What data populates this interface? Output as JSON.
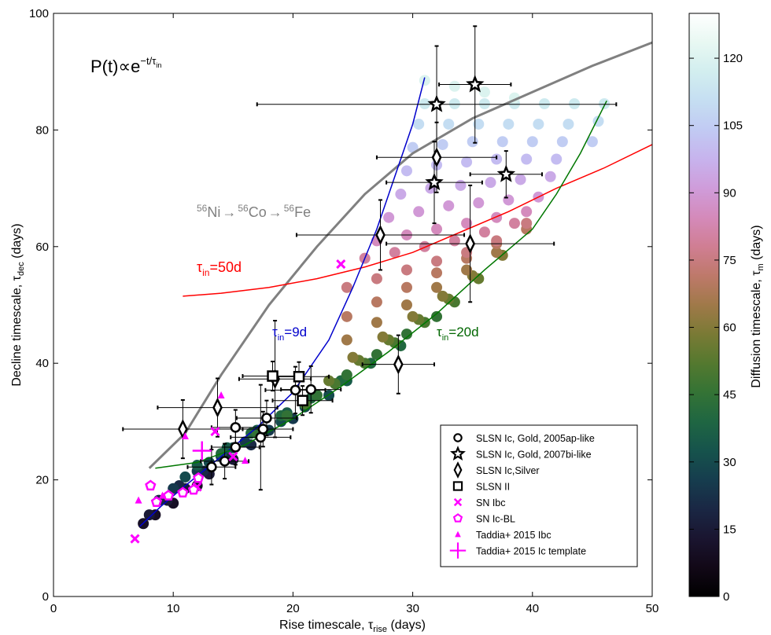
{
  "chart_data": {
    "type": "scatter",
    "title": "",
    "xlabel": "Rise timescale, τ",
    "xlabel_sub": "rise",
    "xlabel_suffix": " (days)",
    "ylabel": "Decline timescale, τ",
    "ylabel_sub": "dec",
    "ylabel_suffix": " (days)",
    "xlim": [
      0,
      50
    ],
    "ylim": [
      0,
      100
    ],
    "xticks": [
      0,
      10,
      20,
      30,
      40,
      50
    ],
    "yticks": [
      0,
      20,
      40,
      60,
      80,
      100
    ],
    "colorbar": {
      "label": "Diffusion timescale, τ",
      "label_sub": "m",
      "label_suffix": "  (days)",
      "range": [
        0,
        130
      ],
      "ticks": [
        0,
        15,
        30,
        45,
        60,
        75,
        90,
        105,
        120
      ],
      "colormap": "cubehelix"
    },
    "annotations": {
      "formula_main": "P(t)∝e",
      "formula_exp": "−t/τ",
      "formula_exp_sub": "in",
      "decay_parts": [
        "56",
        "Ni",
        "→",
        "56",
        "Co",
        "→",
        "56",
        "Fe"
      ],
      "tau50": {
        "pre": "τ",
        "sub": "in",
        "post": "=50d",
        "color": "#ff0000"
      },
      "tau9": {
        "pre": "τ",
        "sub": "in",
        "post": "=9d",
        "color": "#0000cc"
      },
      "tau20": {
        "pre": "τ",
        "sub": "in",
        "post": "=20d",
        "color": "#006600"
      }
    },
    "model_lines": [
      {
        "name": "Ni-Co-Fe",
        "color": "#808080",
        "width": 3,
        "x": [
          8,
          11,
          14,
          18,
          22,
          26,
          30,
          35,
          40,
          45,
          50
        ],
        "y": [
          22,
          28,
          38,
          50,
          60,
          69,
          76,
          82,
          86.5,
          91,
          95
        ]
      },
      {
        "name": "tau_in=50d",
        "color": "#ff0000",
        "width": 1.5,
        "x": [
          10.8,
          14,
          18,
          22,
          26,
          30,
          34,
          38,
          42,
          46,
          50
        ],
        "y": [
          51.5,
          52,
          53,
          54.5,
          56.5,
          59,
          62.5,
          66,
          70,
          73.5,
          77.5
        ]
      },
      {
        "name": "tau_in=9d",
        "color": "#0000cc",
        "width": 1.5,
        "x": [
          7.2,
          9,
          11,
          14,
          17,
          20,
          23,
          25,
          27,
          28.5,
          30,
          31
        ],
        "y": [
          12,
          15.5,
          19,
          24,
          29,
          35,
          44,
          53,
          63,
          72,
          81,
          89
        ]
      },
      {
        "name": "tau_in=20d",
        "color": "#007700",
        "width": 1.5,
        "x": [
          8.5,
          12,
          16,
          20,
          24,
          28,
          32,
          36,
          40,
          42,
          44,
          46.2
        ],
        "y": [
          22,
          23,
          26,
          30.5,
          36,
          42,
          48.5,
          56,
          63,
          69,
          76,
          85
        ]
      }
    ],
    "grid_models": [
      {
        "tau_m": 10,
        "x": [
          7.5,
          8.5,
          10,
          12
        ],
        "y": [
          12.5,
          14,
          16,
          19
        ]
      },
      {
        "tau_m": 15,
        "x": [
          8.0,
          9.5,
          11,
          13,
          15
        ],
        "y": [
          14,
          16.5,
          18.5,
          21,
          23.5
        ]
      },
      {
        "tau_m": 20,
        "x": [
          8.8,
          10.5,
          12.5,
          14.5,
          16.5
        ],
        "y": [
          16.5,
          19,
          21.5,
          24,
          26
        ]
      },
      {
        "tau_m": 25,
        "x": [
          10,
          12,
          14,
          16,
          18,
          20
        ],
        "y": [
          18.5,
          21.5,
          24,
          26.5,
          28.5,
          30.5
        ]
      },
      {
        "tau_m": 30,
        "x": [
          11,
          13,
          15,
          17,
          19,
          21,
          23
        ],
        "y": [
          20.5,
          23,
          25.5,
          28,
          30,
          32.5,
          34.5
        ]
      },
      {
        "tau_m": 35,
        "x": [
          12,
          14.5,
          17,
          19.5,
          22,
          24.5
        ],
        "y": [
          22.5,
          25.5,
          28.5,
          31.5,
          34.5,
          37
        ]
      },
      {
        "tau_m": 40,
        "x": [
          14,
          16.5,
          19,
          21.5,
          24,
          26.5,
          29
        ],
        "y": [
          24.5,
          28,
          31,
          34,
          37,
          40,
          43
        ]
      },
      {
        "tau_m": 45,
        "x": [
          17,
          19.5,
          22,
          24.5,
          27,
          29.5,
          32
        ],
        "y": [
          28,
          31,
          34.5,
          38,
          41.5,
          45,
          48
        ]
      },
      {
        "tau_m": 50,
        "x": [
          21,
          23.5,
          26,
          28.5,
          31,
          33.5
        ],
        "y": [
          33,
          36.5,
          40,
          43.5,
          47,
          50.5
        ]
      },
      {
        "tau_m": 55,
        "x": [
          23,
          25.5,
          28,
          30.5,
          33,
          35.5
        ],
        "y": [
          37,
          40.5,
          44,
          47.5,
          51,
          54.5
        ]
      },
      {
        "tau_m": 60,
        "x": [
          25,
          27.5,
          30,
          32.5,
          35,
          37.5
        ],
        "y": [
          41,
          44.5,
          48,
          51.5,
          55,
          58.5
        ]
      },
      {
        "tau_m": 65,
        "x": [
          24.5,
          27,
          29.5,
          32,
          34.5,
          37
        ],
        "y": [
          44,
          47,
          50,
          53,
          56,
          59
        ]
      },
      {
        "tau_m": 70,
        "x": [
          24.5,
          27,
          29.5,
          32,
          34.5,
          37,
          39.5
        ],
        "y": [
          48,
          50.5,
          53,
          55.5,
          58,
          60.5,
          63
        ]
      },
      {
        "tau_m": 75,
        "x": [
          24.5,
          27,
          29.5,
          32,
          34.5,
          37,
          39.5
        ],
        "y": [
          53,
          54.5,
          56,
          57.5,
          59,
          61,
          64
        ]
      },
      {
        "tau_m": 80,
        "x": [
          26,
          28.5,
          31,
          33.5,
          36,
          38.5
        ],
        "y": [
          58,
          59,
          60,
          61,
          62.5,
          64
        ]
      },
      {
        "tau_m": 85,
        "x": [
          27,
          29.5,
          32,
          34.5,
          37,
          39.5
        ],
        "y": [
          61,
          62,
          63,
          64,
          65,
          66
        ]
      },
      {
        "tau_m": 90,
        "x": [
          28,
          30.5,
          33,
          35.5,
          38,
          40.5
        ],
        "y": [
          65,
          66,
          67,
          67.5,
          68,
          68.5
        ]
      },
      {
        "tau_m": 95,
        "x": [
          29,
          31.5,
          34,
          36.5,
          39,
          41.5
        ],
        "y": [
          69,
          70,
          70.5,
          71,
          71.5,
          72
        ]
      },
      {
        "tau_m": 100,
        "x": [
          29.5,
          32,
          34.5,
          37,
          39.5,
          42
        ],
        "y": [
          73,
          74,
          74.5,
          75,
          75,
          75
        ]
      },
      {
        "tau_m": 105,
        "x": [
          30,
          32.5,
          35,
          37.5,
          40,
          42.5,
          45
        ],
        "y": [
          77,
          77.5,
          78,
          78,
          78,
          78,
          78
        ]
      },
      {
        "tau_m": 110,
        "x": [
          30.5,
          33,
          35.5,
          38,
          40.5,
          43,
          45.5
        ],
        "y": [
          81,
          81,
          81,
          81,
          81,
          81,
          81.5
        ]
      },
      {
        "tau_m": 115,
        "x": [
          31,
          33.5,
          36,
          38.5,
          41,
          43.5,
          46
        ],
        "y": [
          84.5,
          84.5,
          84.5,
          84.5,
          84.5,
          84.5,
          84.5
        ]
      },
      {
        "tau_m": 120,
        "x": [
          31,
          33.5,
          36,
          38.5
        ],
        "y": [
          88.5,
          87.5,
          86.5,
          85.5
        ]
      }
    ],
    "series": [
      {
        "name": "SLSN Ic, Gold, 2005ap-like",
        "marker": "circle",
        "x": [
          13.2,
          14.3,
          15.2,
          15.2,
          17.3,
          17.5,
          17.8,
          20.2,
          21.5
        ],
        "y": [
          22.2,
          23.2,
          25.6,
          29.0,
          27.3,
          28.7,
          30.6,
          35.4,
          35.5
        ],
        "xerr": [
          2,
          2,
          2,
          2,
          2.5,
          2.5,
          2.5,
          2.5,
          2.5
        ],
        "yerr": [
          3,
          3,
          3,
          3,
          9,
          3,
          3,
          4,
          4
        ]
      },
      {
        "name": "SLSN Ic, Gold, 2007bi-like",
        "marker": "star",
        "x": [
          32.0,
          35.2,
          31.8,
          37.8
        ],
        "y": [
          84.4,
          87.8,
          71.0,
          72.4
        ],
        "xerr": [
          15,
          3,
          4,
          3
        ],
        "yerr": [
          10,
          10,
          7,
          4
        ]
      },
      {
        "name": "SLSN Ic,Silver",
        "marker": "diamond",
        "x": [
          10.8,
          13.7,
          18.5,
          27.3,
          32.0,
          34.8,
          28.8
        ],
        "y": [
          28.7,
          32.4,
          37.3,
          62.0,
          75.3,
          60.5,
          39.8
        ],
        "xerr": [
          5,
          5,
          3,
          7,
          5,
          7,
          3
        ],
        "yerr": [
          5,
          5,
          10,
          6,
          6,
          10,
          5
        ]
      },
      {
        "name": "SLSN II",
        "marker": "square",
        "x": [
          18.3,
          20.5,
          20.8
        ],
        "y": [
          37.8,
          37.7,
          33.6
        ],
        "xerr": [
          2.5,
          2.5,
          2.5
        ],
        "yerr": [
          2.5,
          2.5,
          2.5
        ]
      },
      {
        "name": "SN Ibc",
        "marker": "x",
        "x": [
          6.8,
          12.0,
          13.5,
          15.0,
          24.0
        ],
        "y": [
          9.9,
          18.8,
          28.3,
          24.0,
          57.0
        ]
      },
      {
        "name": "SN Ic-BL",
        "marker": "pentagon",
        "x": [
          8.1,
          8.6,
          9.6,
          10.8,
          12.1,
          11.7
        ],
        "y": [
          19.0,
          16.2,
          17.3,
          17.8,
          20.3,
          18.3
        ]
      },
      {
        "name": "Taddia+ 2015 Ibc",
        "marker": "triangle",
        "x": [
          7.1,
          9.1,
          11.0,
          14.0,
          16.0
        ],
        "y": [
          16.5,
          17.3,
          27.5,
          34.5,
          23.3
        ]
      },
      {
        "name": "Taddia+ 2015 Ic template",
        "marker": "plus",
        "x": [
          12.4
        ],
        "y": [
          25.0
        ]
      }
    ]
  }
}
